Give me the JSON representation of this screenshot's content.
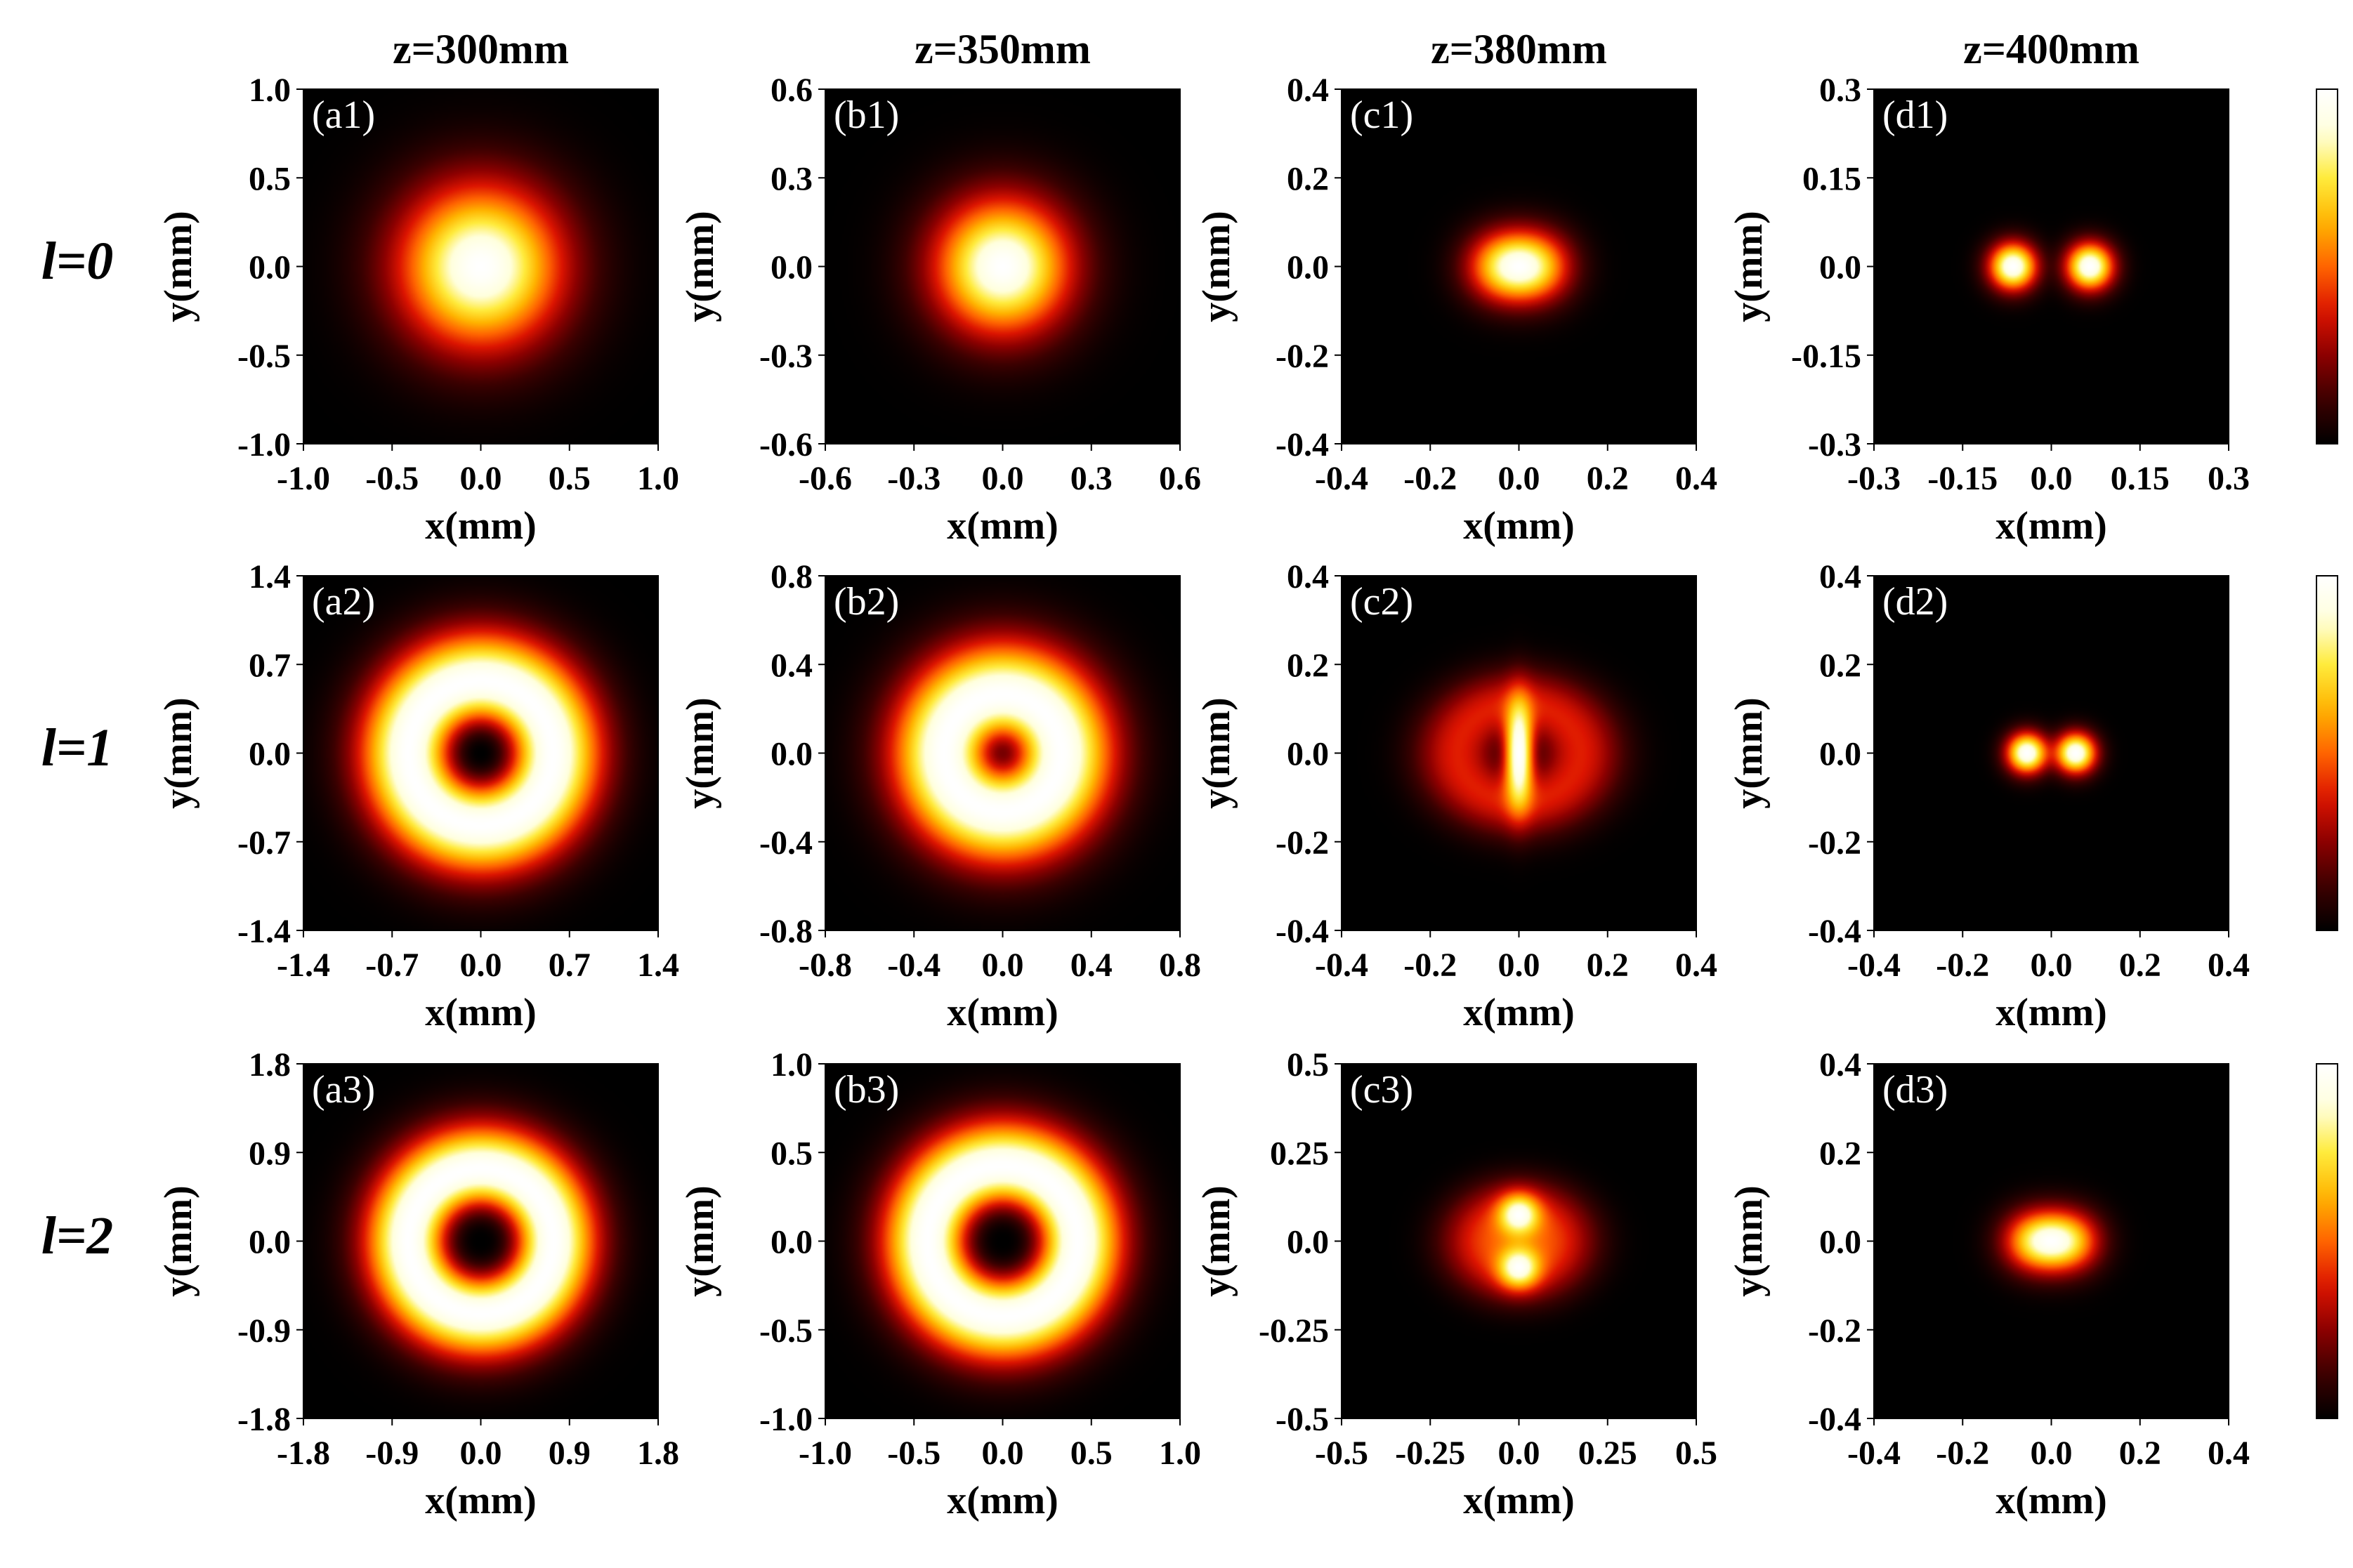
{
  "figure": {
    "column_titles": [
      "z=300mm",
      "z=350mm",
      "z=380mm",
      "z=400mm"
    ],
    "row_labels": [
      "l=0",
      "l=1",
      "l=2"
    ],
    "colormap": [
      "#000000",
      "#3c0000",
      "#8c0000",
      "#dc1400",
      "#ff6400",
      "#ffb400",
      "#ffeb3c",
      "#ffffdc",
      "#ffffff"
    ],
    "colorbar_ticks": [
      "0",
      "0.5",
      "1"
    ]
  },
  "chart_data": [
    {
      "type": "heatmap",
      "panel": "(a1)",
      "xlabel": "x(mm)",
      "ylabel": "y(mm)",
      "xlim": [
        -1.0,
        1.0
      ],
      "ylim": [
        -1.0,
        1.0
      ],
      "xticks": [
        "-1.0",
        "-0.5",
        "0.0",
        "0.5",
        "1.0"
      ],
      "yticks": [
        "-1.0",
        "-0.5",
        "0.0",
        "0.5",
        "1.0"
      ],
      "pattern": "gaussian",
      "w": 0.4,
      "colorbar": false
    },
    {
      "type": "heatmap",
      "panel": "(b1)",
      "xlabel": "x(mm)",
      "ylabel": "y(mm)",
      "xlim": [
        -0.6,
        0.6
      ],
      "ylim": [
        -0.6,
        0.6
      ],
      "xticks": [
        "-0.6",
        "-0.3",
        "0.0",
        "0.3",
        "0.6"
      ],
      "yticks": [
        "-0.6",
        "-0.3",
        "0.0",
        "0.3",
        "0.6"
      ],
      "pattern": "gaussian",
      "w": 0.2,
      "colorbar": false
    },
    {
      "type": "heatmap",
      "panel": "(c1)",
      "xlabel": "x(mm)",
      "ylabel": "y(mm)",
      "xlim": [
        -0.4,
        0.4
      ],
      "ylim": [
        -0.4,
        0.4
      ],
      "xticks": [
        "-0.4",
        "-0.2",
        "0.0",
        "0.2",
        "0.4"
      ],
      "yticks": [
        "-0.4",
        "-0.2",
        "0.0",
        "0.2",
        "0.4"
      ],
      "pattern": "elongated",
      "w": 0.07,
      "d": 0.06,
      "colorbar": false
    },
    {
      "type": "heatmap",
      "panel": "(d1)",
      "xlabel": "x(mm)",
      "ylabel": "y(mm)",
      "xlim": [
        -0.3,
        0.3
      ],
      "ylim": [
        -0.3,
        0.3
      ],
      "xticks": [
        "-0.3",
        "-0.15",
        "0.0",
        "0.15",
        "0.3"
      ],
      "yticks": [
        "-0.3",
        "-0.15",
        "0.0",
        "0.15",
        "0.3"
      ],
      "pattern": "two-lobe",
      "w": 0.035,
      "d": 0.065,
      "colorbar": true
    },
    {
      "type": "heatmap",
      "panel": "(a2)",
      "xlabel": "x(mm)",
      "ylabel": "y(mm)",
      "xlim": [
        -1.4,
        1.4
      ],
      "ylim": [
        -1.4,
        1.4
      ],
      "xticks": [
        "-1.4",
        "-0.7",
        "0.0",
        "0.7",
        "1.4"
      ],
      "yticks": [
        "-1.4",
        "-0.7",
        "0.0",
        "0.7",
        "1.4"
      ],
      "pattern": "donut",
      "w": 0.45,
      "colorbar": false
    },
    {
      "type": "heatmap",
      "panel": "(b2)",
      "xlabel": "x(mm)",
      "ylabel": "y(mm)",
      "xlim": [
        -0.8,
        0.8
      ],
      "ylim": [
        -0.8,
        0.8
      ],
      "xticks": [
        "-0.8",
        "-0.4",
        "0.0",
        "0.4",
        "0.8"
      ],
      "yticks": [
        "-0.8",
        "-0.4",
        "0.0",
        "0.4",
        "0.8"
      ],
      "pattern": "donut-soft",
      "w": 0.27,
      "colorbar": false
    },
    {
      "type": "heatmap",
      "panel": "(c2)",
      "xlabel": "x(mm)",
      "ylabel": "y(mm)",
      "xlim": [
        -0.4,
        0.4
      ],
      "ylim": [
        -0.4,
        0.4
      ],
      "xticks": [
        "-0.4",
        "-0.2",
        "0.0",
        "0.2",
        "0.4"
      ],
      "yticks": [
        "-0.4",
        "-0.2",
        "0.0",
        "0.2",
        "0.4"
      ],
      "pattern": "oval-bar",
      "w": 0.13,
      "colorbar": false
    },
    {
      "type": "heatmap",
      "panel": "(d2)",
      "xlabel": "x(mm)",
      "ylabel": "y(mm)",
      "xlim": [
        -0.4,
        0.4
      ],
      "ylim": [
        -0.4,
        0.4
      ],
      "xticks": [
        "-0.4",
        "-0.2",
        "0.0",
        "0.2",
        "0.4"
      ],
      "yticks": [
        "-0.4",
        "-0.2",
        "0.0",
        "0.2",
        "0.4"
      ],
      "pattern": "two-lobe",
      "w": 0.04,
      "d": 0.055,
      "colorbar": true
    },
    {
      "type": "heatmap",
      "panel": "(a3)",
      "xlabel": "x(mm)",
      "ylabel": "y(mm)",
      "xlim": [
        -1.8,
        1.8
      ],
      "ylim": [
        -1.8,
        1.8
      ],
      "xticks": [
        "-1.8",
        "-0.9",
        "0.0",
        "0.9",
        "1.8"
      ],
      "yticks": [
        "-1.8",
        "-0.9",
        "0.0",
        "0.9",
        "1.8"
      ],
      "pattern": "ring",
      "w": 0.52,
      "colorbar": false
    },
    {
      "type": "heatmap",
      "panel": "(b3)",
      "xlabel": "x(mm)",
      "ylabel": "y(mm)",
      "xlim": [
        -1.0,
        1.0
      ],
      "ylim": [
        -1.0,
        1.0
      ],
      "xticks": [
        "-1.0",
        "-0.5",
        "0.0",
        "0.5",
        "1.0"
      ],
      "yticks": [
        "-1.0",
        "-0.5",
        "0.0",
        "0.5",
        "1.0"
      ],
      "pattern": "ring",
      "w": 0.3,
      "colorbar": false
    },
    {
      "type": "heatmap",
      "panel": "(c3)",
      "xlabel": "x(mm)",
      "ylabel": "y(mm)",
      "xlim": [
        -0.5,
        0.5
      ],
      "ylim": [
        -0.5,
        0.5
      ],
      "xticks": [
        "-0.5",
        "-0.25",
        "0.0",
        "0.25",
        "0.5"
      ],
      "yticks": [
        "-0.5",
        "-0.25",
        "0.0",
        "0.25",
        "0.5"
      ],
      "pattern": "oval-spots",
      "w": 0.16,
      "colorbar": false
    },
    {
      "type": "heatmap",
      "panel": "(d3)",
      "xlabel": "x(mm)",
      "ylabel": "y(mm)",
      "xlim": [
        -0.4,
        0.4
      ],
      "ylim": [
        -0.4,
        0.4
      ],
      "xticks": [
        "-0.4",
        "-0.2",
        "0.0",
        "0.2",
        "0.4"
      ],
      "yticks": [
        "-0.4",
        "-0.2",
        "0.0",
        "0.2",
        "0.4"
      ],
      "pattern": "elongated",
      "w": 0.06,
      "d": 0.06,
      "colorbar": true
    }
  ]
}
